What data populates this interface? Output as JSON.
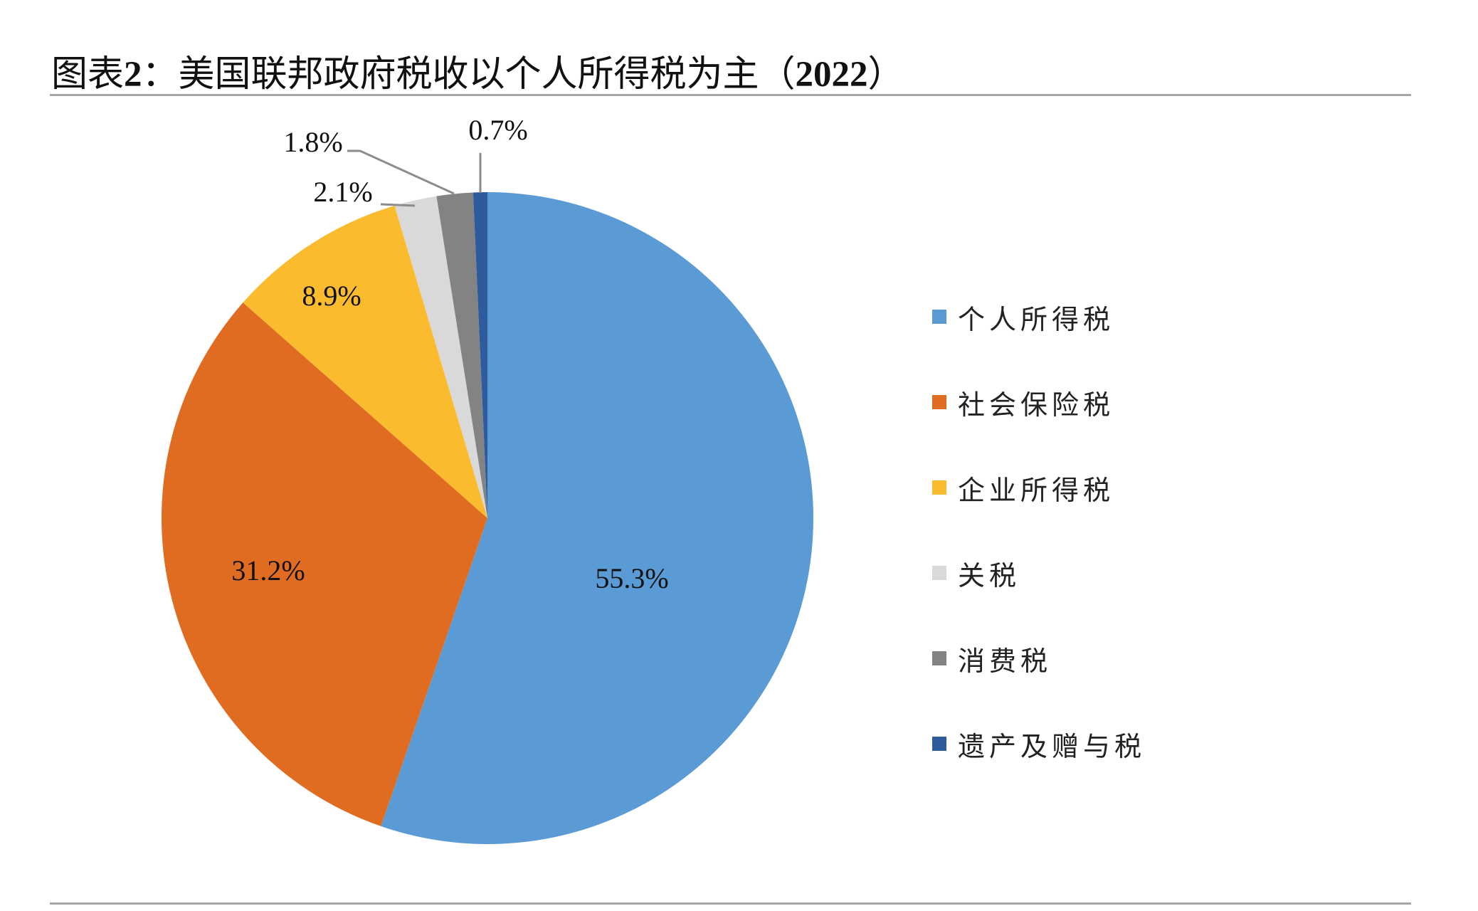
{
  "figure": {
    "title_prefix": "图表",
    "title_number": "2",
    "title_text": "：美国联邦政府税收以个人所得税为主（",
    "title_year": "2022",
    "title_suffix": "）"
  },
  "chart_data": {
    "type": "pie",
    "title": "图表2：美国联邦政府税收以个人所得税为主（2022）",
    "start_angle": "12 o'clock, clockwise",
    "categories": [
      "个人所得税",
      "社会保险税",
      "企业所得税",
      "关税",
      "消费税",
      "遗产及赠与税"
    ],
    "values": [
      55.3,
      31.2,
      8.9,
      2.1,
      1.8,
      0.7
    ],
    "labels": [
      "55.3%",
      "31.2%",
      "8.9%",
      "2.1%",
      "1.8%",
      "0.7%"
    ],
    "colors": [
      "#5b9bd5",
      "#e06c22",
      "#fbbb2f",
      "#d9d9d9",
      "#838383",
      "#2e5a9e"
    ],
    "legend_position": "right",
    "unit": "%"
  },
  "legend": {
    "items": [
      {
        "label": "个人所得税",
        "color": "#5b9bd5"
      },
      {
        "label": "社会保险税",
        "color": "#e06c22"
      },
      {
        "label": "企业所得税",
        "color": "#fbbb2f"
      },
      {
        "label": "关税",
        "color": "#d9d9d9"
      },
      {
        "label": "消费税",
        "color": "#838383"
      },
      {
        "label": "遗产及赠与税",
        "color": "#2e5a9e"
      }
    ]
  }
}
